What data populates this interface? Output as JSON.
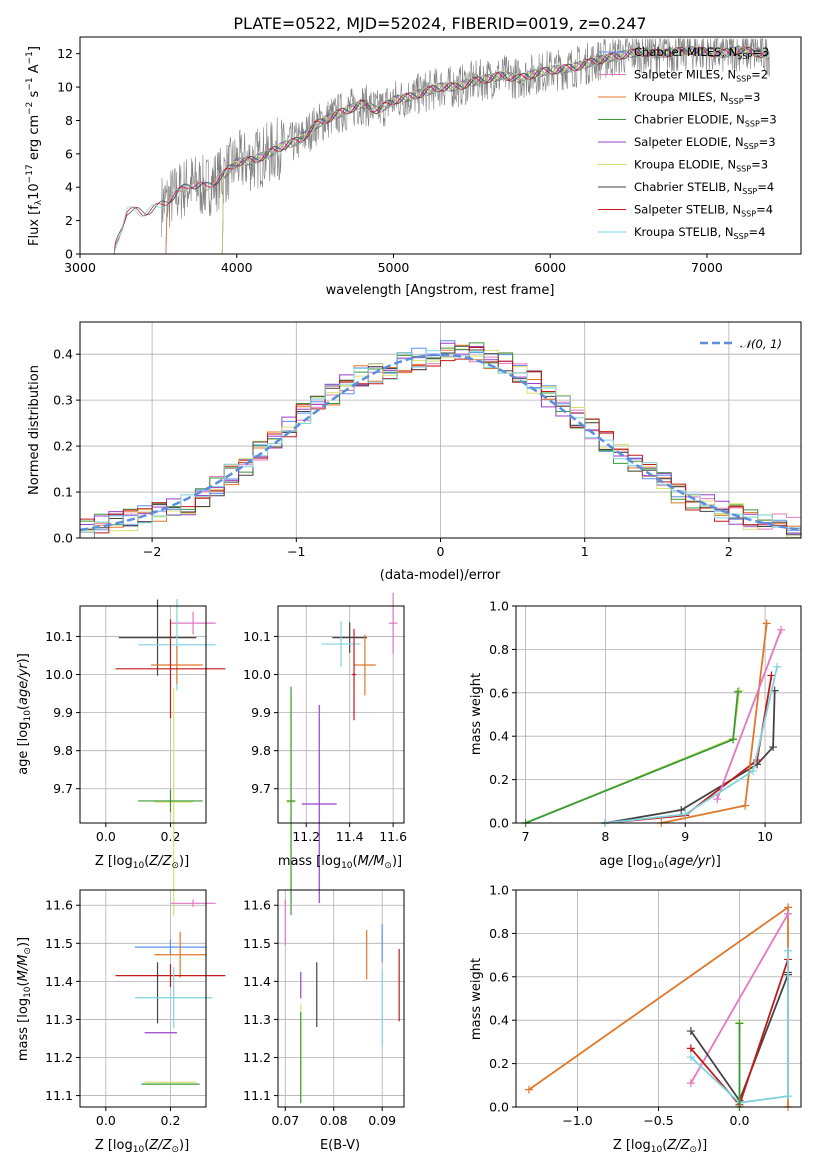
{
  "figure": {
    "title": "PLATE=0522, MJD=52024, FIBERID=0019, z=0.247",
    "colors": {
      "chabrier_miles": "#5b8ff0",
      "salpeter_miles": "#e377c2",
      "kroupa_miles": "#e0782a",
      "chabrier_elodie": "#3a9a3a",
      "salpeter_elodie": "#9b3fcf",
      "kroupa_elodie": "#d9e070",
      "chabrier_stelib": "#444444",
      "salpeter_stelib": "#c41a1a",
      "kroupa_stelib": "#7fd3e0",
      "gaussian": "#5b8fdc"
    }
  },
  "chart_data": [
    {
      "id": "spectrum",
      "type": "line",
      "xlabel": "wavelength [Angstrom, rest frame]",
      "ylabel": "Flux [f_λ 10^-17 erg cm^-2 s^-1 A^-1]",
      "xlim": [
        3000,
        7600
      ],
      "ylim": [
        0,
        13
      ],
      "xticks": [
        "3000",
        "4000",
        "5000",
        "6000",
        "7000"
      ],
      "yticks": [
        "0",
        "2",
        "4",
        "6",
        "8",
        "10",
        "12"
      ],
      "grid": false,
      "legend_position": "right",
      "continuum": {
        "x": [
          3210,
          3300,
          3400,
          3500,
          3600,
          3700,
          3800,
          3900,
          4000,
          4100,
          4200,
          4300,
          4400,
          4500,
          4600,
          4700,
          4800,
          4900,
          5000,
          5100,
          5200,
          5300,
          5400,
          5500,
          5600,
          5700,
          5800,
          5900,
          6000,
          6100,
          6200,
          6300,
          6400,
          6500,
          6600,
          6700,
          6800,
          6900,
          7000,
          7100,
          7200,
          7300,
          7400
        ],
        "y": [
          0,
          2.6,
          2.5,
          2.8,
          3.5,
          4.2,
          4.0,
          4.6,
          5.5,
          5.6,
          6.0,
          6.5,
          6.8,
          7.7,
          8.2,
          8.6,
          9.0,
          8.6,
          9.2,
          9.4,
          9.7,
          10.0,
          10.0,
          10.3,
          10.5,
          10.7,
          10.5,
          10.8,
          11.0,
          11.1,
          11.3,
          11.6,
          11.8,
          12.0,
          12.1,
          12.0,
          12.1,
          12.2,
          12.1,
          12.0,
          12.2,
          12.1,
          11.9
        ]
      },
      "observed_range": [
        3520,
        7400
      ],
      "series": [
        {
          "name": "Chabrier MILES, N_SSP=3",
          "color_key": "chabrier_miles",
          "start": 3540
        },
        {
          "name": "Salpeter MILES, N_SSP=2",
          "color_key": "salpeter_miles",
          "start": 3540
        },
        {
          "name": "Kroupa MILES, N_SSP=3",
          "color_key": "kroupa_miles",
          "start": 3540
        },
        {
          "name": "Chabrier ELODIE, N_SSP=3",
          "color_key": "chabrier_elodie",
          "start": 3900
        },
        {
          "name": "Salpeter ELODIE, N_SSP=3",
          "color_key": "salpeter_elodie",
          "start": 3900
        },
        {
          "name": "Kroupa ELODIE, N_SSP=3",
          "color_key": "kroupa_elodie",
          "start": 3900
        },
        {
          "name": "Chabrier STELIB, N_SSP=4",
          "color_key": "chabrier_stelib",
          "start": 3210
        },
        {
          "name": "Salpeter STELIB, N_SSP=4",
          "color_key": "salpeter_stelib",
          "start": 3210
        },
        {
          "name": "Kroupa STELIB, N_SSP=4",
          "color_key": "kroupa_stelib",
          "start": 3210
        }
      ]
    },
    {
      "id": "residuals",
      "type": "line",
      "xlabel": "(data-model)/error",
      "ylabel": "Normed distribution",
      "xlim": [
        -2.5,
        2.5
      ],
      "ylim": [
        0,
        0.47
      ],
      "xticks": [
        "−2",
        "−1",
        "0",
        "1",
        "2"
      ],
      "xtick_values": [
        -2,
        -1,
        0,
        1,
        2
      ],
      "yticks": [
        "0.0",
        "0.1",
        "0.2",
        "0.3",
        "0.4"
      ],
      "ytick_values": [
        0,
        0.1,
        0.2,
        0.3,
        0.4
      ],
      "grid": true,
      "legend_position": "top-right",
      "legend": "𝒩(0, 1)",
      "bins": [
        -2.5,
        -2.4,
        -2.3,
        -2.2,
        -2.1,
        -2.0,
        -1.9,
        -1.8,
        -1.7,
        -1.6,
        -1.5,
        -1.4,
        -1.3,
        -1.2,
        -1.1,
        -1.0,
        -0.9,
        -0.8,
        -0.7,
        -0.6,
        -0.5,
        -0.4,
        -0.3,
        -0.2,
        -0.1,
        0.0,
        0.1,
        0.2,
        0.3,
        0.4,
        0.5,
        0.6,
        0.7,
        0.8,
        0.9,
        1.0,
        1.1,
        1.2,
        1.3,
        1.4,
        1.5,
        1.6,
        1.7,
        1.8,
        1.9,
        2.0,
        2.1,
        2.2,
        2.3,
        2.4,
        2.5
      ],
      "histogram_base": [
        0.025,
        0.03,
        0.035,
        0.04,
        0.05,
        0.055,
        0.06,
        0.07,
        0.09,
        0.11,
        0.14,
        0.16,
        0.19,
        0.22,
        0.24,
        0.27,
        0.29,
        0.31,
        0.33,
        0.35,
        0.36,
        0.37,
        0.38,
        0.39,
        0.39,
        0.41,
        0.41,
        0.4,
        0.39,
        0.38,
        0.36,
        0.34,
        0.31,
        0.29,
        0.26,
        0.24,
        0.21,
        0.18,
        0.16,
        0.14,
        0.12,
        0.1,
        0.08,
        0.07,
        0.06,
        0.05,
        0.04,
        0.03,
        0.03,
        0.025
      ]
    },
    {
      "id": "age_vs_Z",
      "type": "scatter",
      "xlabel": "Z [log10(Z/Z⊙)]",
      "ylabel": "age  [log10(age/yr)]",
      "xlim": [
        -0.08,
        0.31
      ],
      "ylim": [
        9.61,
        10.18
      ],
      "xticks": [
        "0.0",
        "0.2"
      ],
      "xtick_values": [
        0,
        0.2
      ],
      "yticks": [
        "9.7",
        "9.8",
        "9.9",
        "10.0",
        "10.1"
      ],
      "ytick_values": [
        9.7,
        9.8,
        9.9,
        10.0,
        10.1
      ],
      "grid": true,
      "points": [
        {
          "c": "salpeter_miles",
          "x": 0.27,
          "y": 10.135,
          "xe": 0.07,
          "ye": 0.03
        },
        {
          "c": "chabrier_stelib",
          "x": 0.16,
          "y": 10.097,
          "xe": 0.12,
          "ye": 0.1
        },
        {
          "c": "kroupa_stelib",
          "x": 0.22,
          "y": 10.078,
          "xe": 0.12,
          "ye": 0.12
        },
        {
          "c": "kroupa_miles",
          "x": 0.22,
          "y": 10.025,
          "xe": 0.08,
          "ye": 0.05
        },
        {
          "c": "salpeter_stelib",
          "x": 0.2,
          "y": 10.015,
          "xe": 0.17,
          "ye": 0.13
        },
        {
          "c": "kroupa_elodie",
          "x": 0.21,
          "y": 9.665,
          "xe": 0.06,
          "ye": 0.3
        },
        {
          "c": "chabrier_elodie",
          "x": 0.2,
          "y": 9.668,
          "xe": 0.1,
          "ye": 0.03
        }
      ]
    },
    {
      "id": "age_vs_mass",
      "type": "scatter",
      "xlabel": "mass [log10(M/M⊙)]",
      "ylabel": "",
      "xlim": [
        11.07,
        11.65
      ],
      "ylim": [
        9.61,
        10.18
      ],
      "xticks": [
        "11.2",
        "11.4",
        "11.6"
      ],
      "xtick_values": [
        11.2,
        11.4,
        11.6
      ],
      "yticks": [
        "9.7",
        "9.8",
        "9.9",
        "10.0",
        "10.1"
      ],
      "ytick_values": [
        9.7,
        9.8,
        9.9,
        10.0,
        10.1
      ],
      "grid": true,
      "points": [
        {
          "c": "salpeter_miles",
          "x": 11.6,
          "y": 10.135,
          "xe": 0.02,
          "ye": 0.08
        },
        {
          "c": "chabrier_stelib",
          "x": 11.4,
          "y": 10.097,
          "xe": 0.08,
          "ye": 0.04
        },
        {
          "c": "kroupa_stelib",
          "x": 11.36,
          "y": 10.08,
          "xe": 0.09,
          "ye": 0.06
        },
        {
          "c": "kroupa_miles",
          "x": 11.47,
          "y": 10.025,
          "xe": 0.05,
          "ye": 0.08
        },
        {
          "c": "salpeter_stelib",
          "x": 11.42,
          "y": 10.0,
          "xe": 0.01,
          "ye": 0.12
        },
        {
          "c": "salpeter_elodie",
          "x": 11.26,
          "y": 9.66,
          "xe": 0.08,
          "ye": 0.26
        },
        {
          "c": "kroupa_elodie",
          "x": 11.13,
          "y": 9.665,
          "xe": 0.02,
          "ye": 0.28
        },
        {
          "c": "chabrier_elodie",
          "x": 11.13,
          "y": 9.668,
          "xe": 0.02,
          "ye": 0.3
        }
      ]
    },
    {
      "id": "weight_vs_age",
      "type": "line",
      "xlabel": "age  [log10(age/yr)]",
      "ylabel": "mass weight",
      "xlim": [
        6.88,
        10.45
      ],
      "ylim": [
        0,
        1
      ],
      "xticks": [
        "7",
        "8",
        "9",
        "10"
      ],
      "xtick_values": [
        7,
        8,
        9,
        10
      ],
      "yticks": [
        "0.0",
        "0.2",
        "0.4",
        "0.6",
        "0.8",
        "1.0"
      ],
      "ytick_values": [
        0,
        0.2,
        0.4,
        0.6,
        0.8,
        1
      ],
      "grid": true,
      "series": [
        {
          "c": "kroupa_elodie",
          "x": [
            7.0,
            9.6,
            9.68
          ],
          "y": [
            0.0,
            0.39,
            0.61
          ]
        },
        {
          "c": "chabrier_elodie",
          "x": [
            7.0,
            9.6,
            9.66
          ],
          "y": [
            0.0,
            0.385,
            0.605
          ]
        },
        {
          "c": "chabrier_stelib",
          "x": [
            8.0,
            8.95,
            9.9,
            10.1,
            10.12
          ],
          "y": [
            0.0,
            0.06,
            0.27,
            0.35,
            0.61
          ]
        },
        {
          "c": "salpeter_stelib",
          "x": [
            8.0,
            9.0,
            9.9,
            10.08
          ],
          "y": [
            0.0,
            0.035,
            0.29,
            0.68
          ]
        },
        {
          "c": "kroupa_miles",
          "x": [
            8.7,
            9.75,
            10.02
          ],
          "y": [
            0.0,
            0.08,
            0.92
          ]
        },
        {
          "c": "salpeter_miles",
          "x": [
            9.4,
            10.2
          ],
          "y": [
            0.11,
            0.89
          ]
        },
        {
          "c": "kroupa_stelib",
          "x": [
            8.0,
            9.0,
            9.85,
            10.15
          ],
          "y": [
            0.0,
            0.04,
            0.24,
            0.72
          ]
        }
      ]
    },
    {
      "id": "mass_vs_Z",
      "type": "scatter",
      "xlabel": "Z [log10(Z/Z⊙)]",
      "ylabel": "mass [log10(M/M⊙)]",
      "xlim": [
        -0.08,
        0.31
      ],
      "ylim": [
        11.07,
        11.64
      ],
      "xticks": [
        "0.0",
        "0.2"
      ],
      "xtick_values": [
        0,
        0.2
      ],
      "yticks": [
        "11.1",
        "11.2",
        "11.3",
        "11.4",
        "11.5",
        "11.6"
      ],
      "ytick_values": [
        11.1,
        11.2,
        11.3,
        11.4,
        11.5,
        11.6
      ],
      "grid": true,
      "points": [
        {
          "c": "salpeter_miles",
          "x": 0.27,
          "y": 11.605,
          "xe": 0.07,
          "ye": 0.01
        },
        {
          "c": "chabrier_miles",
          "x": 0.2,
          "y": 11.49,
          "xe": 0.11,
          "ye": 0.02
        },
        {
          "c": "kroupa_miles",
          "x": 0.23,
          "y": 11.47,
          "xe": 0.08,
          "ye": 0.06
        },
        {
          "c": "salpeter_stelib",
          "x": 0.2,
          "y": 11.415,
          "xe": 0.17,
          "ye": 0.03
        },
        {
          "c": "chabrier_stelib",
          "x": 0.16,
          "y": 11.37,
          "xe": 0.0,
          "ye": 0.08
        },
        {
          "c": "kroupa_stelib",
          "x": 0.21,
          "y": 11.357,
          "xe": 0.12,
          "ye": 0.08
        },
        {
          "c": "salpeter_elodie",
          "x": 0.17,
          "y": 11.265,
          "xe": 0.05,
          "ye": 0.0
        },
        {
          "c": "kroupa_elodie",
          "x": 0.2,
          "y": 11.135,
          "xe": 0.08,
          "ye": 0.0
        },
        {
          "c": "chabrier_elodie",
          "x": 0.2,
          "y": 11.13,
          "xe": 0.09,
          "ye": 0.0
        }
      ]
    },
    {
      "id": "mass_vs_ebv",
      "type": "scatter",
      "xlabel": "E(B-V)",
      "ylabel": "",
      "xlim": [
        0.0685,
        0.0945
      ],
      "ylim": [
        11.07,
        11.64
      ],
      "xticks": [
        "0.07",
        "0.08",
        "0.09"
      ],
      "xtick_values": [
        0.07,
        0.08,
        0.09
      ],
      "yticks": [
        "11.1",
        "11.2",
        "11.3",
        "11.4",
        "11.5",
        "11.6"
      ],
      "ytick_values": [
        11.1,
        11.2,
        11.3,
        11.4,
        11.5,
        11.6
      ],
      "grid": true,
      "points": [
        {
          "c": "salpeter_miles",
          "x": 0.07,
          "y": 11.555,
          "ye": 0.06
        },
        {
          "c": "chabrier_miles",
          "x": 0.09,
          "y": 11.5,
          "ye": 0.05
        },
        {
          "c": "kroupa_miles",
          "x": 0.0868,
          "y": 11.47,
          "ye": 0.065
        },
        {
          "c": "salpeter_stelib",
          "x": 0.0935,
          "y": 11.39,
          "ye": 0.095
        },
        {
          "c": "chabrier_stelib",
          "x": 0.0765,
          "y": 11.365,
          "ye": 0.085
        },
        {
          "c": "salpeter_elodie",
          "x": 0.0732,
          "y": 11.39,
          "ye": 0.035
        },
        {
          "c": "kroupa_stelib",
          "x": 0.09,
          "y": 11.33,
          "ye": 0.1
        },
        {
          "c": "kroupa_elodie",
          "x": 0.0732,
          "y": 11.21,
          "ye": 0.13
        },
        {
          "c": "chabrier_elodie",
          "x": 0.0732,
          "y": 11.2,
          "ye": 0.12
        }
      ]
    },
    {
      "id": "weight_vs_Z",
      "type": "line",
      "xlabel": "Z [log10(Z/Z⊙)]",
      "ylabel": "mass weight",
      "xlim": [
        -1.38,
        0.38
      ],
      "ylim": [
        0,
        1
      ],
      "xticks": [
        "−1.0",
        "−0.5",
        "0.0"
      ],
      "xtick_values": [
        -1,
        -0.5,
        0
      ],
      "yticks": [
        "0.0",
        "0.2",
        "0.4",
        "0.6",
        "0.8",
        "1.0"
      ],
      "ytick_values": [
        0,
        0.2,
        0.4,
        0.6,
        0.8,
        1
      ],
      "grid": true,
      "series": [
        {
          "c": "kroupa_miles",
          "x": [
            -1.3,
            0.3,
            0.3
          ],
          "y": [
            0.08,
            0.92,
            0.0
          ]
        },
        {
          "c": "salpeter_miles",
          "x": [
            -0.3,
            0.3
          ],
          "y": [
            0.11,
            0.89
          ]
        },
        {
          "c": "chabrier_stelib",
          "x": [
            -0.3,
            0.0,
            0.3,
            0.3
          ],
          "y": [
            0.35,
            0.03,
            0.61,
            0.62
          ]
        },
        {
          "c": "salpeter_stelib",
          "x": [
            -0.3,
            0.0,
            0.3
          ],
          "y": [
            0.27,
            0.01,
            0.68
          ]
        },
        {
          "c": "kroupa_stelib",
          "x": [
            -0.3,
            0.0,
            0.3,
            0.3
          ],
          "y": [
            0.23,
            0.02,
            0.05,
            0.72
          ]
        },
        {
          "c": "kroupa_elodie",
          "x": [
            0.0,
            0.0
          ],
          "y": [
            0.0,
            0.39
          ]
        },
        {
          "c": "chabrier_elodie",
          "x": [
            0.0,
            0.0
          ],
          "y": [
            0.0,
            0.385
          ]
        }
      ]
    }
  ]
}
